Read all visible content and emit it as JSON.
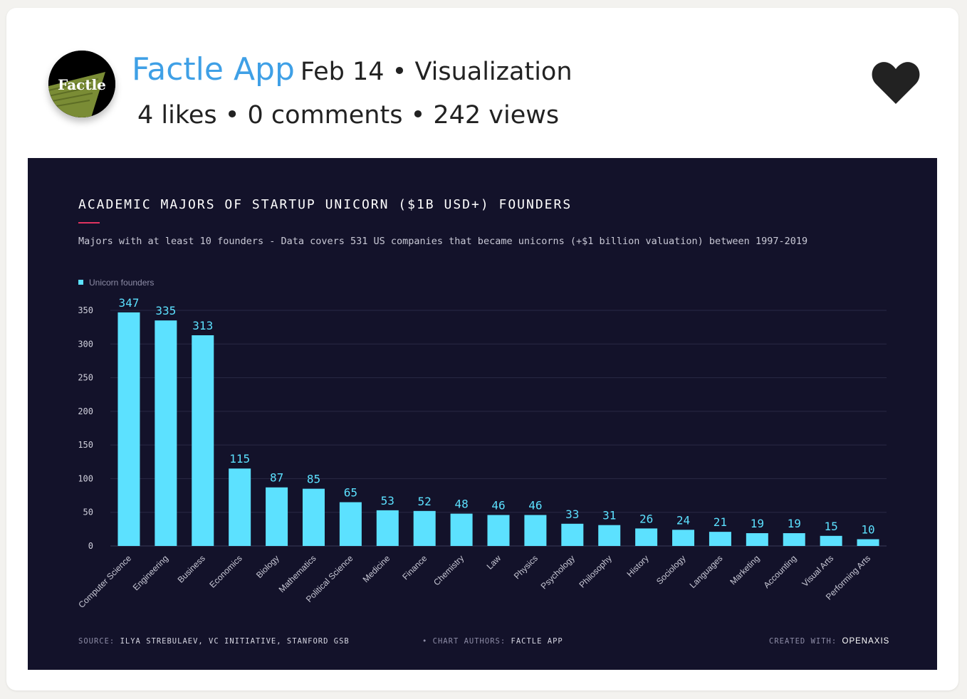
{
  "post": {
    "author": "Factle App",
    "date_category": "Feb 14 • Visualization",
    "stats": "4 likes • 0 comments • 242 views",
    "avatar_text": "Factle",
    "like_icon": "heart-icon"
  },
  "chart_data": {
    "type": "bar",
    "title": "ACADEMIC MAJORS OF STARTUP UNICORN ($1B USD+) FOUNDERS",
    "subtitle": "Majors with at least 10 founders - Data covers 531 US companies that became unicorns (+$1 billion valuation) between 1997-2019",
    "legend_position": "top-left",
    "series": [
      {
        "name": "Unicorn founders",
        "color": "#5ce1ff",
        "values": [
          347,
          335,
          313,
          115,
          87,
          85,
          65,
          53,
          52,
          48,
          46,
          46,
          33,
          31,
          26,
          24,
          21,
          19,
          19,
          15,
          10
        ]
      }
    ],
    "categories": [
      "Computer Science",
      "Engineering",
      "Business",
      "Economics",
      "Biology",
      "Mathematics",
      "Political Science",
      "Medicine",
      "Finance",
      "Chemistry",
      "Law",
      "Physics",
      "Psychology",
      "Philosophy",
      "History",
      "Sociology",
      "Languages",
      "Marketing",
      "Accounting",
      "Visual Arts",
      "Performing Arts"
    ],
    "yticks": [
      0,
      50,
      100,
      150,
      200,
      250,
      300,
      350
    ],
    "ylim": [
      0,
      350
    ],
    "grid": true,
    "xlabel": "",
    "ylabel": ""
  },
  "footer": {
    "source_label": "SOURCE:",
    "source_value": "ILYA STREBULAEV, VC INITIATIVE, STANFORD GSB",
    "authors_label": "CHART AUTHORS:",
    "authors_value": "FACTLE APP",
    "created_label": "CREATED WITH:",
    "created_value": "OPENAXIS"
  }
}
